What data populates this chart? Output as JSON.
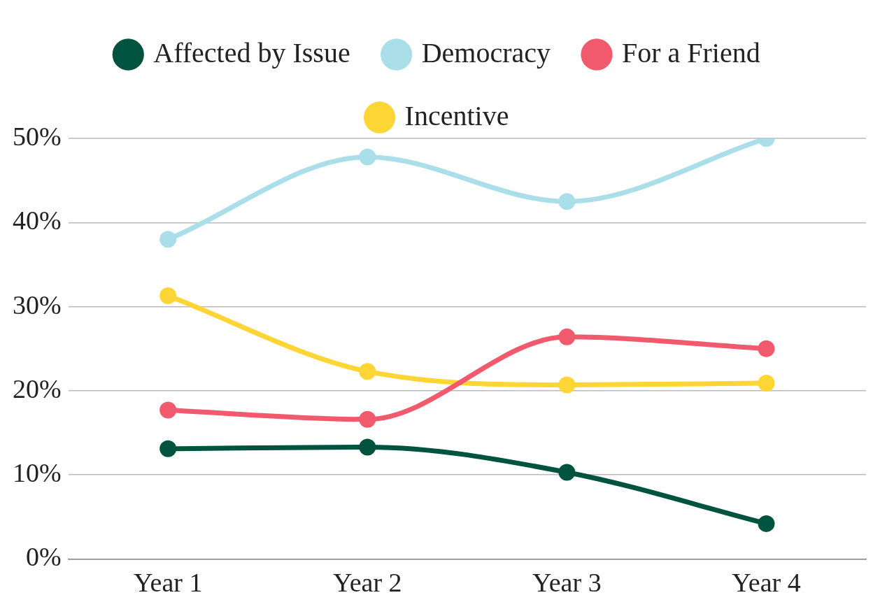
{
  "chart_data": {
    "type": "line",
    "categories": [
      "Year 1",
      "Year 2",
      "Year 3",
      "Year 4"
    ],
    "series": [
      {
        "name": "Affected by Issue",
        "color": "#00533f",
        "values": [
          13.1,
          13.3,
          10.3,
          4.2
        ]
      },
      {
        "name": "Democracy",
        "color": "#aadfe9",
        "values": [
          38,
          47.8,
          42.5,
          50
        ]
      },
      {
        "name": "For a Friend",
        "color": "#f05a6c",
        "values": [
          17.7,
          16.6,
          26.4,
          25
        ]
      },
      {
        "name": "Incentive",
        "color": "#fdd535",
        "values": [
          31.3,
          22.3,
          20.7,
          20.9
        ]
      }
    ],
    "ylim": [
      0,
      50
    ],
    "yticks": [
      {
        "value": 0,
        "label": "0%"
      },
      {
        "value": 10,
        "label": "10%"
      },
      {
        "value": 20,
        "label": "20%"
      },
      {
        "value": 30,
        "label": "30%"
      },
      {
        "value": 40,
        "label": "40%"
      },
      {
        "value": 50,
        "label": "50%"
      }
    ],
    "grid": "y",
    "legend": "top",
    "marker": "circle",
    "line_style": "solid"
  }
}
